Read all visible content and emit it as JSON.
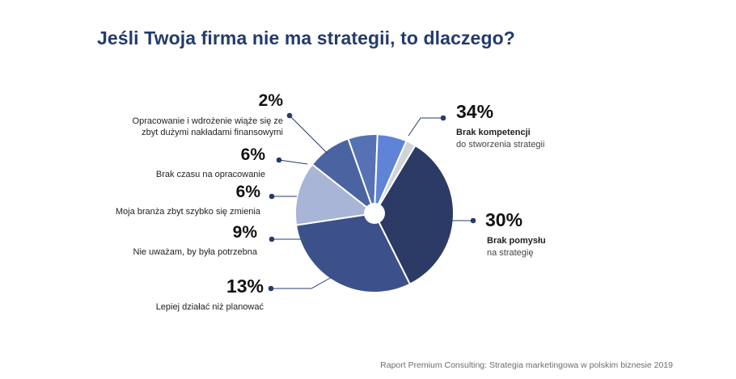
{
  "page": {
    "title": "Jeśli Twoja firma nie ma strategii, to dlaczego?",
    "source": "Raport Premium Consulting: Strategia marketingowa w polskim biznesie 2019"
  },
  "chart_data": {
    "type": "pie",
    "title": "Jeśli Twoja firma nie ma strategii, to dlaczego?",
    "slices": [
      {
        "percent_label": "34%",
        "value": 34,
        "label_lines": [
          "Brak kompetencji",
          "do stworzenia strategii"
        ],
        "color": "#2c3a66"
      },
      {
        "percent_label": "30%",
        "value": 30,
        "label_lines": [
          "Brak pomysłu",
          "na strategię"
        ],
        "color": "#3c5189"
      },
      {
        "percent_label": "13%",
        "value": 13,
        "label_lines": [
          "Lepiej działać niż planować"
        ],
        "color": "#a9b5d6"
      },
      {
        "percent_label": "9%",
        "value": 9,
        "label_lines": [
          "Nie uważam, by była potrzebna"
        ],
        "color": "#4a64a1"
      },
      {
        "percent_label": "6%",
        "value": 6,
        "label_lines": [
          "Moja branża zbyt szybko się zmienia"
        ],
        "color": "#5672b5"
      },
      {
        "percent_label": "6%",
        "value": 6,
        "label_lines": [
          "Brak czasu na opracowanie"
        ],
        "color": "#5f83d6"
      },
      {
        "percent_label": "2%",
        "value": 2,
        "label_lines": [
          "Opracowanie i wdrożenie wiąże się ze",
          "zbyt dużymi nakładami finansowymi"
        ],
        "color": "#cfd3da"
      }
    ],
    "legend": "none",
    "grid": false
  }
}
